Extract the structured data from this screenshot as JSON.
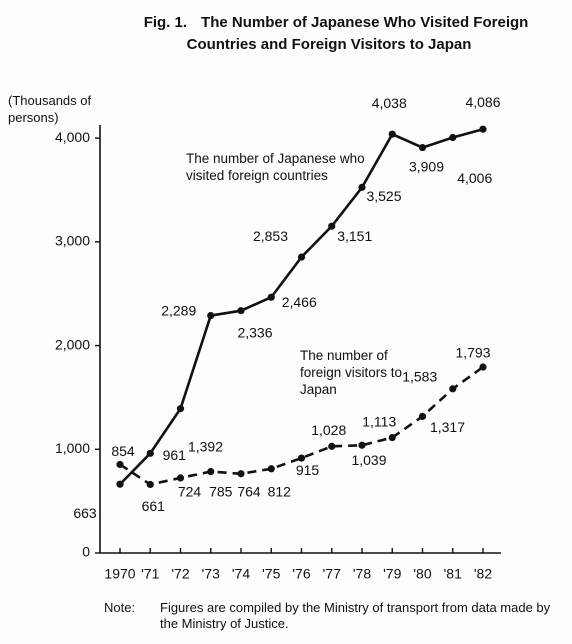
{
  "chart_data": {
    "type": "line",
    "figure_label": "Fig. 1.",
    "title": "The Number of Japanese Who Visited Foreign Countries and Foreign Visitors to Japan",
    "y_label": "(Thousands of persons)",
    "categories": [
      "1970",
      "'71",
      "'72",
      "'73",
      "'74",
      "'75",
      "'76",
      "'77",
      "'78",
      "'79",
      "'80",
      "'81",
      "'82"
    ],
    "series": [
      {
        "name": "The number of Japanese who visited foreign countries",
        "color": "#111111",
        "linestyle": "solid",
        "values": [
          663,
          961,
          1392,
          2289,
          2336,
          2466,
          2853,
          3151,
          3525,
          4038,
          3909,
          4006,
          4086
        ],
        "value_labels": [
          "663",
          "961",
          "1,392",
          "2,289",
          "2,336",
          "2,466",
          "2,853",
          "3,151",
          "3,525",
          "4,038",
          "3,909",
          "4,006",
          "4,086"
        ]
      },
      {
        "name": "The number of foreign visitors to Japan",
        "color": "#111111",
        "linestyle": "dashed",
        "values": [
          854,
          661,
          724,
          785,
          764,
          812,
          915,
          1028,
          1039,
          1113,
          1317,
          1583,
          1793
        ],
        "value_labels": [
          "854",
          "661",
          "724",
          "785",
          "764",
          "812",
          "915",
          "1,028",
          "1,039",
          "1,113",
          "1,317",
          "1,583",
          "1,793"
        ]
      }
    ],
    "ylim": [
      0,
      4300
    ],
    "yticks": [
      0,
      {
        "value": 1000,
        "label": "1,000"
      },
      {
        "value": 2000,
        "label": "2,000"
      },
      {
        "value": 3000,
        "label": "3,000"
      },
      {
        "value": 4000,
        "label": "4,000"
      }
    ],
    "note_label": "Note:",
    "note": "Figures are compiled by the Ministry of transport from data made by the Ministry of Justice."
  }
}
